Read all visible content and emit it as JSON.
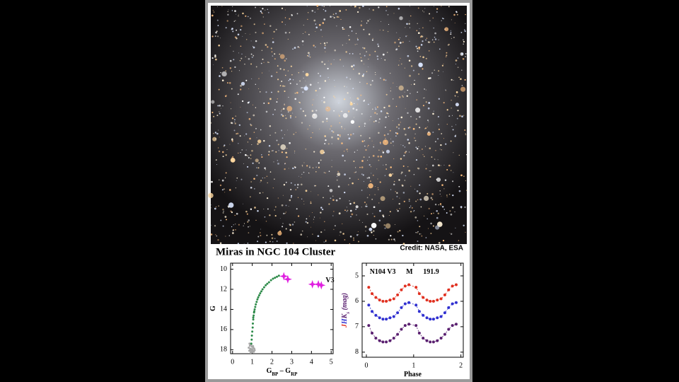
{
  "title": "Miras in NGC 104 Cluster",
  "credit": "Credit: NASA, ESA",
  "chart_data": [
    {
      "type": "scatter",
      "xlabel_parts": [
        {
          "text": "G"
        },
        {
          "text": "BP",
          "sub": true
        },
        {
          "text": " – G"
        },
        {
          "text": "RP",
          "sub": true
        }
      ],
      "ylabel_parts": [
        {
          "text": "G"
        }
      ],
      "xlim": [
        -0.1,
        5.1
      ],
      "ylim": [
        9.4,
        18.4
      ],
      "y_inverted": true,
      "xticks": [
        0,
        1,
        2,
        3,
        4,
        5
      ],
      "yticks": [
        10,
        12,
        14,
        16,
        18
      ],
      "annotations": [
        "V3"
      ],
      "series": [
        {
          "color": "#a8a8a8",
          "marker": "dot",
          "x": [
            0.85,
            0.9,
            0.95,
            1.0,
            1.05,
            0.88,
            0.92,
            0.98,
            1.02,
            1.1,
            0.82,
            0.95,
            1.0,
            1.08,
            0.9,
            0.86,
            0.97,
            1.04,
            0.93,
            1.12
          ],
          "y": [
            18.1,
            17.9,
            18.2,
            18.0,
            17.8,
            17.6,
            18.3,
            17.7,
            18.1,
            17.9,
            17.8,
            17.5,
            18.25,
            18.2,
            18.0,
            17.4,
            17.95,
            17.65,
            18.15,
            18.05
          ]
        },
        {
          "color": "#2e8b4a",
          "marker": "dot",
          "x": [
            0.95,
            0.97,
            0.98,
            1.0,
            1.02,
            1.03,
            1.05,
            1.07,
            1.09,
            1.12,
            1.15,
            1.18,
            1.22,
            1.26,
            1.3,
            1.35,
            1.4,
            1.46,
            1.52,
            1.6,
            1.68,
            1.76,
            1.85,
            1.95,
            2.05,
            2.15,
            2.25,
            2.35,
            1.05,
            1.1
          ],
          "y": [
            17.4,
            17.0,
            16.6,
            16.2,
            15.8,
            15.4,
            15.0,
            14.6,
            14.3,
            14.0,
            13.75,
            13.5,
            13.25,
            13.0,
            12.8,
            12.6,
            12.4,
            12.2,
            12.0,
            11.8,
            11.6,
            11.45,
            11.3,
            11.1,
            10.95,
            10.85,
            10.75,
            10.65,
            14.8,
            14.2
          ]
        },
        {
          "color": "#e020e0",
          "marker": "star",
          "x": [
            2.6,
            2.8,
            4.05,
            4.35,
            4.5
          ],
          "y": [
            10.7,
            11.0,
            11.5,
            11.5,
            11.6
          ]
        }
      ]
    },
    {
      "type": "scatter",
      "xlabel_parts": [
        {
          "text": "Phase"
        }
      ],
      "ylabel_parts": [
        {
          "text": "J",
          "color": "#e03020"
        },
        {
          "text": "H",
          "color": "#3030d0"
        },
        {
          "text": "K",
          "color": "#5a2070"
        },
        {
          "text": "s",
          "sub": true,
          "color": "#5a2070"
        },
        {
          "text": " (mag)",
          "color": "#5a2070"
        }
      ],
      "xlim": [
        -0.09,
        2.05
      ],
      "ylim": [
        4.5,
        8.2
      ],
      "y_inverted": true,
      "xticks": [
        0,
        1,
        2
      ],
      "yticks": [
        5,
        6,
        7,
        8
      ],
      "annotations": [
        "N104 V3",
        "M",
        "191.9"
      ],
      "series": [
        {
          "color": "#e03020",
          "marker": "dot",
          "line": "dashed",
          "x": [
            0.05,
            0.12,
            0.2,
            0.28,
            0.35,
            0.42,
            0.5,
            0.58,
            0.66,
            0.74,
            0.82,
            0.9,
            1.05,
            1.12,
            1.2,
            1.28,
            1.35,
            1.42,
            1.5,
            1.58,
            1.66,
            1.74,
            1.82,
            1.9
          ],
          "y": [
            5.45,
            5.7,
            5.85,
            5.95,
            6.0,
            6.0,
            5.95,
            5.9,
            5.75,
            5.55,
            5.4,
            5.35,
            5.45,
            5.7,
            5.85,
            5.95,
            6.0,
            6.0,
            5.95,
            5.9,
            5.75,
            5.55,
            5.4,
            5.35
          ]
        },
        {
          "color": "#3030d0",
          "marker": "dot",
          "line": "dashed",
          "x": [
            0.05,
            0.12,
            0.2,
            0.28,
            0.35,
            0.42,
            0.5,
            0.58,
            0.66,
            0.74,
            0.82,
            0.9,
            1.05,
            1.12,
            1.2,
            1.28,
            1.35,
            1.42,
            1.5,
            1.58,
            1.66,
            1.74,
            1.82,
            1.9
          ],
          "y": [
            6.15,
            6.4,
            6.55,
            6.65,
            6.7,
            6.7,
            6.65,
            6.6,
            6.45,
            6.25,
            6.1,
            6.05,
            6.15,
            6.4,
            6.55,
            6.65,
            6.7,
            6.7,
            6.65,
            6.6,
            6.45,
            6.25,
            6.1,
            6.05
          ]
        },
        {
          "color": "#5a2070",
          "marker": "dot",
          "line": "dashed",
          "x": [
            0.05,
            0.12,
            0.2,
            0.28,
            0.35,
            0.42,
            0.5,
            0.58,
            0.66,
            0.74,
            0.82,
            0.9,
            1.05,
            1.12,
            1.2,
            1.28,
            1.35,
            1.42,
            1.5,
            1.58,
            1.66,
            1.74,
            1.82,
            1.9
          ],
          "y": [
            6.95,
            7.25,
            7.45,
            7.55,
            7.6,
            7.6,
            7.55,
            7.45,
            7.3,
            7.1,
            6.95,
            6.9,
            6.95,
            7.25,
            7.45,
            7.55,
            7.6,
            7.6,
            7.55,
            7.45,
            7.3,
            7.1,
            6.95,
            6.9
          ]
        }
      ]
    }
  ]
}
